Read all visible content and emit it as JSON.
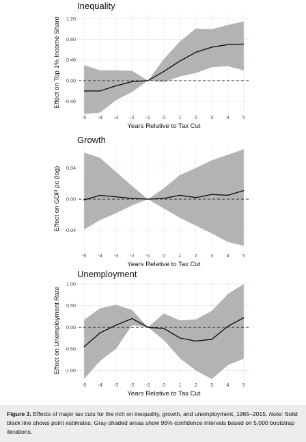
{
  "chart_data": [
    {
      "type": "area",
      "title": "Inequality",
      "xlabel": "Years Relative to Tax Cut",
      "ylabel": "Effect on Top 1% Income Share",
      "x": [
        -5,
        -4,
        -3,
        -2,
        -1,
        0,
        1,
        2,
        3,
        4,
        5
      ],
      "xticks": [
        "-5",
        "-4",
        "-3",
        "-2",
        "-1",
        "0",
        "1",
        "2",
        "3",
        "4",
        "5"
      ],
      "yticks": [
        -0.4,
        0.0,
        0.4,
        0.8,
        1.2
      ],
      "ytick_labels": [
        "-0.40",
        "0.00",
        "0.40",
        "0.80",
        "1.20"
      ],
      "ylim": [
        -0.6,
        1.3
      ],
      "reference_line": 0,
      "grid": true,
      "series": [
        {
          "role": "estimate",
          "values": [
            -0.2,
            -0.2,
            -0.1,
            -0.02,
            0.0,
            0.18,
            0.38,
            0.55,
            0.65,
            0.7,
            0.71
          ]
        },
        {
          "role": "ci_lower",
          "values": [
            -0.65,
            -0.62,
            -0.38,
            -0.22,
            0.0,
            -0.03,
            0.08,
            0.15,
            0.26,
            0.28,
            0.2
          ]
        },
        {
          "role": "ci_upper",
          "values": [
            0.3,
            0.2,
            0.2,
            0.19,
            0.0,
            0.42,
            0.76,
            1.01,
            1.0,
            1.08,
            1.15
          ]
        }
      ]
    },
    {
      "type": "area",
      "title": "Growth",
      "xlabel": "Years Relative to Tax Cut",
      "ylabel": "Effect on GDP pc (log)",
      "x": [
        -5,
        -4,
        -3,
        -2,
        -1,
        0,
        1,
        2,
        3,
        4,
        5
      ],
      "xticks": [
        "-5",
        "-4",
        "-3",
        "-2",
        "-1",
        "0",
        "1",
        "2",
        "3",
        "4",
        "5"
      ],
      "yticks": [
        -0.04,
        0.0,
        0.04
      ],
      "ytick_labels": [
        "-0.04",
        "0.00",
        "0.04"
      ],
      "ylim": [
        -0.065,
        0.066
      ],
      "reference_line": 0,
      "grid": true,
      "series": [
        {
          "role": "estimate",
          "values": [
            -0.001,
            0.005,
            0.003,
            0.001,
            0.0,
            0.001,
            0.005,
            0.002,
            0.006,
            0.005,
            0.011
          ]
        },
        {
          "role": "ci_lower",
          "values": [
            -0.039,
            -0.027,
            -0.018,
            -0.008,
            0.0,
            -0.012,
            -0.024,
            -0.034,
            -0.044,
            -0.055,
            -0.06
          ]
        },
        {
          "role": "ci_upper",
          "values": [
            0.06,
            0.053,
            0.035,
            0.017,
            0.0,
            0.014,
            0.031,
            0.04,
            0.05,
            0.057,
            0.064
          ]
        }
      ]
    },
    {
      "type": "area",
      "title": "Unemployment",
      "xlabel": "Years Relative to Tax Cut",
      "ylabel": "Effect on Unemployment Rate",
      "x": [
        -5,
        -4,
        -3,
        -2,
        -1,
        0,
        1,
        2,
        3,
        4,
        5
      ],
      "xticks": [
        "-5",
        "-4",
        "-3",
        "-2",
        "-1",
        "0",
        "1",
        "2",
        "3",
        "4",
        "5"
      ],
      "yticks": [
        -1.0,
        -0.5,
        0.0,
        0.5,
        1.0
      ],
      "ytick_labels": [
        "-1.00",
        "-0.50",
        "0.00",
        "0.50",
        "1.00"
      ],
      "ylim": [
        -1.2,
        1.05
      ],
      "reference_line": 0,
      "grid": true,
      "series": [
        {
          "role": "estimate",
          "values": [
            -0.45,
            -0.13,
            0.05,
            0.2,
            0.0,
            -0.03,
            -0.25,
            -0.32,
            -0.28,
            0.02,
            0.22
          ]
        },
        {
          "role": "ci_lower",
          "values": [
            -1.2,
            -0.78,
            -0.5,
            0.05,
            0.0,
            -0.3,
            -0.72,
            -1.0,
            -1.2,
            -0.88,
            -0.73
          ]
        },
        {
          "role": "ci_upper",
          "values": [
            0.17,
            0.44,
            0.52,
            0.4,
            0.0,
            0.32,
            0.16,
            0.18,
            0.38,
            0.77,
            1.0
          ]
        }
      ]
    }
  ],
  "colors": {
    "band": "#b3b3b3",
    "line": "#111111",
    "grid": "#e6e6e6",
    "caption_background": "#ececec"
  },
  "caption": {
    "figure_label": "Figure 3.",
    "text": " Effects of major tax cuts for the rich on inequality, growth, and unemployment, 1965–2015.",
    "note_label": "Note:",
    "note_text": " Solid black line shows point estimates. Gray shaded areas show 95% confidence intervals based on 5,000 bootstrap iterations."
  }
}
